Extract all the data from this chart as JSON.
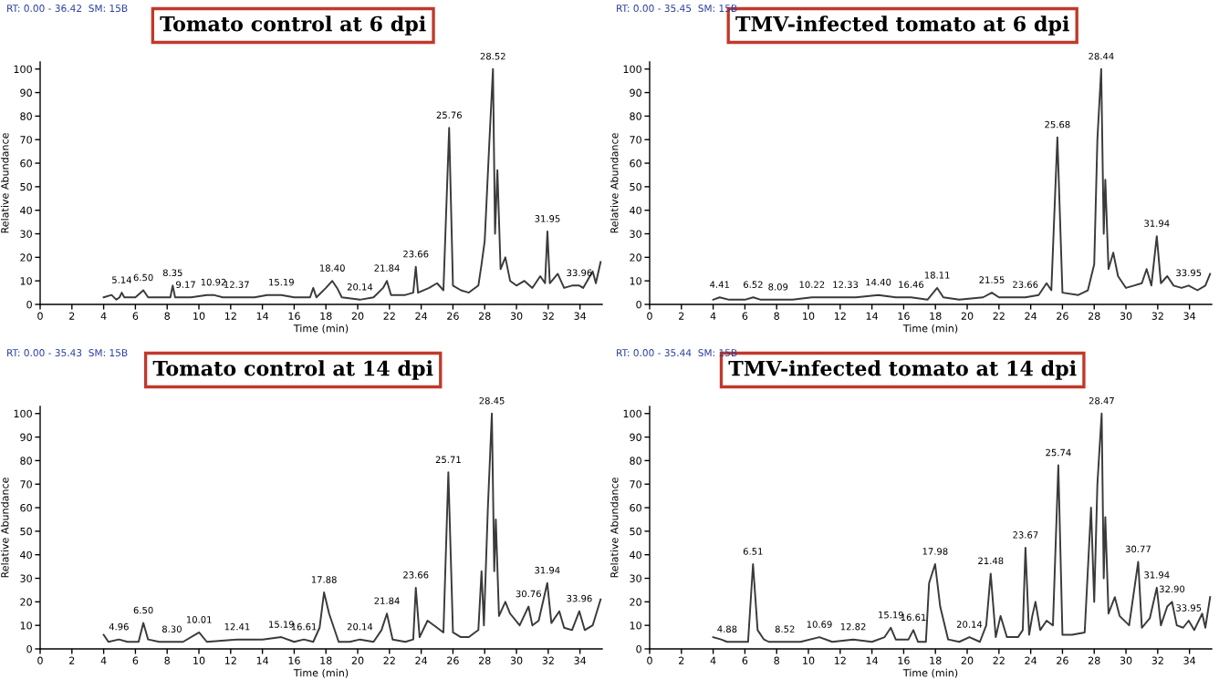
{
  "chart_data": [
    {
      "type": "line",
      "title": "Tomato control at 6 dpi",
      "xlabel": "Time (min)",
      "ylabel": "Relative Abundance",
      "xlim": [
        0,
        35.4
      ],
      "ylim": [
        0,
        103
      ],
      "xticks": [
        0,
        2,
        4,
        6,
        8,
        10,
        12,
        14,
        16,
        18,
        20,
        22,
        24,
        26,
        28,
        30,
        32,
        34
      ],
      "yticks": [
        0,
        10,
        20,
        30,
        40,
        50,
        60,
        70,
        80,
        90,
        100
      ],
      "grid": false,
      "marker": "none",
      "line_style": "solid",
      "series": [
        {
          "color": "#3a3a3a",
          "x": [
            4.0,
            4.5,
            4.8,
            5.0,
            5.14,
            5.3,
            6.0,
            6.5,
            6.8,
            7.5,
            8.2,
            8.35,
            8.5,
            9.17,
            9.5,
            10.5,
            10.92,
            11.5,
            12.37,
            13.5,
            14.3,
            15.19,
            16.0,
            17.0,
            17.2,
            17.4,
            18.0,
            18.4,
            18.7,
            19.0,
            20.14,
            21.0,
            21.6,
            21.84,
            22.1,
            23.0,
            23.5,
            23.66,
            23.8,
            24.5,
            25.0,
            25.4,
            25.76,
            26.0,
            26.5,
            27.0,
            27.6,
            27.8,
            28.0,
            28.3,
            28.52,
            28.65,
            28.8,
            29.0,
            29.3,
            29.6,
            30.0,
            30.5,
            31.0,
            31.5,
            31.8,
            31.95,
            32.1,
            32.6,
            33.0,
            33.5,
            33.96,
            34.2,
            34.8,
            35.0,
            35.3
          ],
          "values": [
            3,
            4,
            2,
            3,
            5,
            3,
            3,
            6,
            3,
            3,
            3,
            8,
            3,
            3,
            3,
            4,
            4,
            3,
            3,
            3,
            4,
            4,
            3,
            3,
            7,
            3,
            7,
            10,
            7,
            3,
            2,
            3,
            7,
            10,
            4,
            4,
            5,
            16,
            5,
            7,
            9,
            6,
            75,
            8,
            6,
            5,
            8,
            17,
            27,
            70,
            100,
            30,
            57,
            15,
            20,
            10,
            8,
            10,
            7,
            12,
            9,
            31,
            9,
            13,
            7,
            8,
            8,
            7,
            14,
            9,
            18
          ]
        }
      ],
      "annotations": [
        "RT: 0.00 - 36.42  SM: 15B",
        {
          "text": "5.14",
          "x": 5.14,
          "y": 5
        },
        {
          "text": "6.50",
          "x": 6.5,
          "y": 6
        },
        {
          "text": "8.35",
          "x": 8.35,
          "y": 8
        },
        {
          "text": "9.17",
          "x": 9.17,
          "y": 3
        },
        {
          "text": "10.92",
          "x": 10.92,
          "y": 4
        },
        {
          "text": "12.37",
          "x": 12.37,
          "y": 3
        },
        {
          "text": "15.19",
          "x": 15.19,
          "y": 4
        },
        {
          "text": "18.40",
          "x": 18.4,
          "y": 10
        },
        {
          "text": "20.14",
          "x": 20.14,
          "y": 2
        },
        {
          "text": "21.84",
          "x": 21.84,
          "y": 10
        },
        {
          "text": "23.66",
          "x": 23.66,
          "y": 16
        },
        {
          "text": "25.76",
          "x": 25.76,
          "y": 75
        },
        {
          "text": "28.52",
          "x": 28.52,
          "y": 100
        },
        {
          "text": "31.95",
          "x": 31.95,
          "y": 31
        },
        {
          "text": "33.96",
          "x": 33.96,
          "y": 8
        }
      ]
    },
    {
      "type": "line",
      "title": "TMV-infected tomato at 6 dpi",
      "xlabel": "Time (min)",
      "ylabel": "Relative Abundance",
      "xlim": [
        0,
        35.4
      ],
      "ylim": [
        0,
        103
      ],
      "xticks": [
        0,
        2,
        4,
        6,
        8,
        10,
        12,
        14,
        16,
        18,
        20,
        22,
        24,
        26,
        28,
        30,
        32,
        34
      ],
      "yticks": [
        0,
        10,
        20,
        30,
        40,
        50,
        60,
        70,
        80,
        90,
        100
      ],
      "grid": false,
      "marker": "none",
      "line_style": "solid",
      "series": [
        {
          "color": "#3a3a3a",
          "x": [
            4.0,
            4.41,
            5.0,
            6.0,
            6.52,
            7.0,
            8.09,
            9.0,
            10.22,
            11.0,
            12.33,
            13.0,
            14.4,
            15.5,
            16.46,
            17.5,
            18.11,
            18.5,
            19.5,
            21.0,
            21.55,
            22.0,
            23.0,
            23.66,
            24.5,
            25.0,
            25.3,
            25.68,
            26.0,
            27.0,
            27.6,
            28.0,
            28.2,
            28.44,
            28.6,
            28.7,
            28.9,
            29.2,
            29.5,
            30.0,
            30.5,
            31.0,
            31.3,
            31.6,
            31.94,
            32.2,
            32.6,
            33.0,
            33.5,
            33.95,
            34.5,
            35.0,
            35.3
          ],
          "values": [
            2,
            3,
            2,
            2,
            3,
            2,
            2,
            2,
            3,
            3,
            3,
            3,
            4,
            3,
            3,
            2,
            7,
            3,
            2,
            3,
            5,
            3,
            3,
            3,
            4,
            9,
            6,
            71,
            5,
            4,
            6,
            17,
            70,
            100,
            30,
            53,
            15,
            22,
            12,
            7,
            8,
            9,
            15,
            8,
            29,
            9,
            12,
            8,
            7,
            8,
            6,
            8,
            13
          ]
        }
      ],
      "annotations": [
        "RT: 0.00 - 35.45  SM: 15B",
        {
          "text": "4.41",
          "x": 4.41,
          "y": 3
        },
        {
          "text": "6.52",
          "x": 6.52,
          "y": 3
        },
        {
          "text": "8.09",
          "x": 8.09,
          "y": 2
        },
        {
          "text": "10.22",
          "x": 10.22,
          "y": 3
        },
        {
          "text": "12.33",
          "x": 12.33,
          "y": 3
        },
        {
          "text": "14.40",
          "x": 14.4,
          "y": 4
        },
        {
          "text": "16.46",
          "x": 16.46,
          "y": 3
        },
        {
          "text": "18.11",
          "x": 18.11,
          "y": 7
        },
        {
          "text": "21.55",
          "x": 21.55,
          "y": 5
        },
        {
          "text": "23.66",
          "x": 23.66,
          "y": 3
        },
        {
          "text": "25.68",
          "x": 25.68,
          "y": 71
        },
        {
          "text": "28.44",
          "x": 28.44,
          "y": 100
        },
        {
          "text": "31.94",
          "x": 31.94,
          "y": 29
        },
        {
          "text": "33.95",
          "x": 33.95,
          "y": 8
        }
      ]
    },
    {
      "type": "line",
      "title": "Tomato control at 14 dpi",
      "xlabel": "Time (min)",
      "ylabel": "Relative Abundance",
      "xlim": [
        0,
        35.4
      ],
      "ylim": [
        0,
        103
      ],
      "xticks": [
        0,
        2,
        4,
        6,
        8,
        10,
        12,
        14,
        16,
        18,
        20,
        22,
        24,
        26,
        28,
        30,
        32,
        34
      ],
      "yticks": [
        0,
        10,
        20,
        30,
        40,
        50,
        60,
        70,
        80,
        90,
        100
      ],
      "grid": false,
      "marker": "none",
      "line_style": "solid",
      "series": [
        {
          "color": "#3a3a3a",
          "x": [
            4.0,
            4.3,
            4.96,
            5.5,
            6.2,
            6.5,
            6.8,
            7.5,
            8.3,
            9.0,
            10.01,
            10.5,
            12.41,
            14.0,
            15.19,
            16.0,
            16.61,
            17.2,
            17.6,
            17.88,
            18.2,
            18.8,
            19.5,
            20.14,
            21.0,
            21.5,
            21.84,
            22.2,
            23.0,
            23.5,
            23.66,
            23.9,
            24.4,
            25.0,
            25.4,
            25.71,
            26.0,
            26.5,
            27.0,
            27.6,
            27.8,
            27.95,
            28.2,
            28.45,
            28.6,
            28.7,
            28.9,
            29.3,
            29.6,
            30.2,
            30.76,
            31.0,
            31.4,
            31.94,
            32.2,
            32.7,
            33.0,
            33.5,
            33.96,
            34.3,
            34.8,
            35.3
          ],
          "values": [
            6,
            3,
            4,
            3,
            3,
            11,
            4,
            3,
            3,
            3,
            7,
            3,
            4,
            4,
            5,
            3,
            4,
            3,
            9,
            24,
            15,
            3,
            3,
            4,
            3,
            8,
            15,
            4,
            3,
            4,
            26,
            5,
            12,
            9,
            7,
            75,
            7,
            5,
            5,
            8,
            33,
            10,
            60,
            100,
            33,
            55,
            14,
            20,
            15,
            10,
            18,
            10,
            12,
            28,
            11,
            16,
            9,
            8,
            16,
            8,
            10,
            21
          ]
        }
      ],
      "annotations": [
        "RT: 0.00 - 35.43  SM: 15B",
        {
          "text": "4.96",
          "x": 4.96,
          "y": 4
        },
        {
          "text": "6.50",
          "x": 6.5,
          "y": 11
        },
        {
          "text": "8.30",
          "x": 8.3,
          "y": 3
        },
        {
          "text": "10.01",
          "x": 10.01,
          "y": 7
        },
        {
          "text": "12.41",
          "x": 12.41,
          "y": 4
        },
        {
          "text": "15.19",
          "x": 15.19,
          "y": 5
        },
        {
          "text": "16.61",
          "x": 16.61,
          "y": 4
        },
        {
          "text": "17.88",
          "x": 17.88,
          "y": 24
        },
        {
          "text": "20.14",
          "x": 20.14,
          "y": 4
        },
        {
          "text": "21.84",
          "x": 21.84,
          "y": 15
        },
        {
          "text": "23.66",
          "x": 23.66,
          "y": 26
        },
        {
          "text": "25.71",
          "x": 25.71,
          "y": 75
        },
        {
          "text": "28.45",
          "x": 28.45,
          "y": 100
        },
        {
          "text": "30.76",
          "x": 30.76,
          "y": 18
        },
        {
          "text": "31.94",
          "x": 31.94,
          "y": 28
        },
        {
          "text": "33.96",
          "x": 33.96,
          "y": 16
        }
      ]
    },
    {
      "type": "line",
      "title": "TMV-infected tomato at 14 dpi",
      "xlabel": "Time (min)",
      "ylabel": "Relative Abundance",
      "xlim": [
        0,
        35.4
      ],
      "ylim": [
        0,
        103
      ],
      "xticks": [
        0,
        2,
        4,
        6,
        8,
        10,
        12,
        14,
        16,
        18,
        20,
        22,
        24,
        26,
        28,
        30,
        32,
        34
      ],
      "yticks": [
        0,
        10,
        20,
        30,
        40,
        50,
        60,
        70,
        80,
        90,
        100
      ],
      "grid": false,
      "marker": "none",
      "line_style": "solid",
      "series": [
        {
          "color": "#3a3a3a",
          "x": [
            4.0,
            4.5,
            4.88,
            5.5,
            6.2,
            6.51,
            6.8,
            7.2,
            7.5,
            8.52,
            9.5,
            10.69,
            11.5,
            12.82,
            14.0,
            14.8,
            15.19,
            15.5,
            16.3,
            16.61,
            16.9,
            17.4,
            17.6,
            17.98,
            18.3,
            18.8,
            19.5,
            20.14,
            20.8,
            21.2,
            21.48,
            21.8,
            22.1,
            22.5,
            23.2,
            23.5,
            23.67,
            23.9,
            24.1,
            24.3,
            24.6,
            25.0,
            25.4,
            25.74,
            26.0,
            26.6,
            27.4,
            27.8,
            28.0,
            28.2,
            28.47,
            28.6,
            28.7,
            28.9,
            29.3,
            29.6,
            30.2,
            30.77,
            31.0,
            31.5,
            31.94,
            32.2,
            32.6,
            32.9,
            33.2,
            33.6,
            33.95,
            34.3,
            34.8,
            35.0,
            35.3
          ],
          "values": [
            5,
            4,
            3,
            3,
            3,
            36,
            8,
            4,
            3,
            3,
            3,
            5,
            3,
            4,
            3,
            5,
            9,
            4,
            4,
            8,
            3,
            3,
            28,
            36,
            18,
            4,
            3,
            5,
            3,
            10,
            32,
            5,
            14,
            5,
            5,
            8,
            43,
            6,
            14,
            20,
            8,
            12,
            10,
            78,
            6,
            6,
            7,
            60,
            20,
            70,
            100,
            30,
            56,
            15,
            22,
            14,
            10,
            37,
            9,
            13,
            26,
            10,
            18,
            20,
            10,
            9,
            12,
            8,
            15,
            9,
            22
          ]
        }
      ],
      "annotations": [
        "RT: 0.00 - 35.44  SM: 15B",
        {
          "text": "4.88",
          "x": 4.88,
          "y": 3
        },
        {
          "text": "6.51",
          "x": 6.51,
          "y": 36
        },
        {
          "text": "8.52",
          "x": 8.52,
          "y": 3
        },
        {
          "text": "10.69",
          "x": 10.69,
          "y": 5
        },
        {
          "text": "12.82",
          "x": 12.82,
          "y": 4
        },
        {
          "text": "15.19",
          "x": 15.19,
          "y": 9
        },
        {
          "text": "16.61",
          "x": 16.61,
          "y": 8
        },
        {
          "text": "17.98",
          "x": 17.98,
          "y": 36
        },
        {
          "text": "20.14",
          "x": 20.14,
          "y": 5
        },
        {
          "text": "21.48",
          "x": 21.48,
          "y": 32
        },
        {
          "text": "23.67",
          "x": 23.67,
          "y": 43
        },
        {
          "text": "25.74",
          "x": 25.74,
          "y": 78
        },
        {
          "text": "28.47",
          "x": 28.47,
          "y": 100
        },
        {
          "text": "30.77",
          "x": 30.77,
          "y": 37
        },
        {
          "text": "31.94",
          "x": 31.94,
          "y": 26
        },
        {
          "text": "32.90",
          "x": 32.9,
          "y": 20
        },
        {
          "text": "33.95",
          "x": 33.95,
          "y": 12
        }
      ]
    }
  ]
}
